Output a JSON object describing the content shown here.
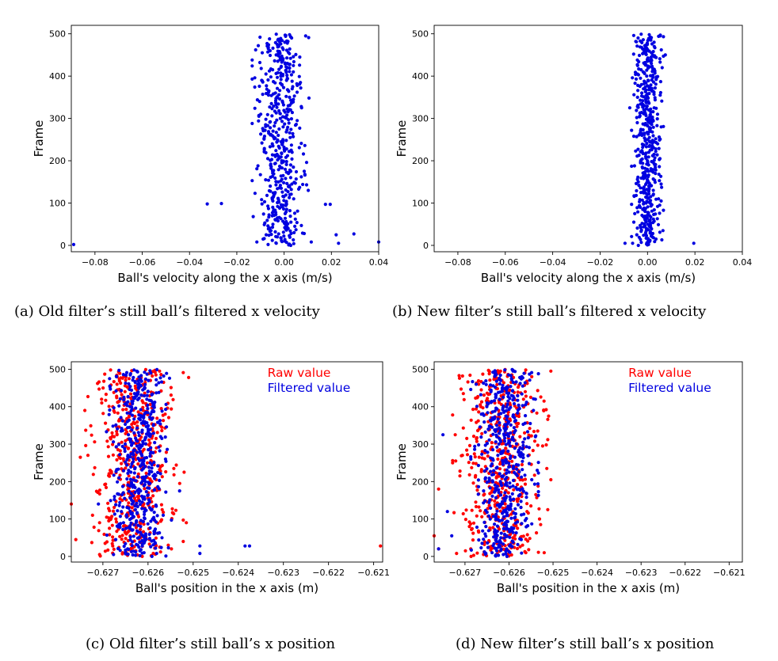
{
  "captions": {
    "a": "(a) Old filter’s still ball’s filtered x velocity",
    "b": "(b) New filter’s still ball’s filtered x velocity",
    "c": "(c) Old filter’s still ball’s x position",
    "d": "(d) New filter’s still ball’s x position"
  },
  "colors": {
    "raw": "#ff0000",
    "filtered": "#0000e0",
    "axis": "#000000"
  },
  "chart_data": [
    {
      "id": "a",
      "type": "scatter",
      "xlabel": "Ball's velocity along the x axis (m/s)",
      "ylabel": "Frame",
      "xlim": [
        -0.09,
        0.04
      ],
      "ylim": [
        -15,
        520
      ],
      "xticks": [
        -0.08,
        -0.06,
        -0.04,
        -0.02,
        0.0,
        0.02,
        0.04
      ],
      "xtick_labels": [
        "−0.08",
        "−0.06",
        "−0.04",
        "−0.02",
        "0.00",
        "0.02",
        "0.04"
      ],
      "yticks": [
        0,
        100,
        200,
        300,
        400,
        500
      ],
      "ytick_labels": [
        "0",
        "100",
        "200",
        "300",
        "400",
        "500"
      ],
      "series": [
        {
          "color": "#0000e0",
          "sample": {
            "count": 500,
            "frames": [
              0,
              499
            ],
            "center": -0.0015,
            "spread": 0.005
          },
          "outliers": [
            [
              -0.089,
              2
            ],
            [
              -0.0325,
              98
            ],
            [
              -0.0265,
              99
            ],
            [
              0.0175,
              97
            ],
            [
              0.0195,
              97
            ],
            [
              0.022,
              25
            ],
            [
              0.023,
              5
            ],
            [
              0.0295,
              27
            ],
            [
              0.04,
              8
            ],
            [
              0.0115,
              8
            ],
            [
              0.0085,
              28
            ],
            [
              -0.0095,
              390
            ],
            [
              0.0095,
              143
            ],
            [
              0.0085,
              175
            ]
          ]
        }
      ]
    },
    {
      "id": "b",
      "type": "scatter",
      "xlabel": "Ball's velocity along the x axis (m/s)",
      "ylabel": "Frame",
      "xlim": [
        -0.09,
        0.04
      ],
      "ylim": [
        -15,
        520
      ],
      "xticks": [
        -0.08,
        -0.06,
        -0.04,
        -0.02,
        0.0,
        0.02,
        0.04
      ],
      "xtick_labels": [
        "−0.08",
        "−0.06",
        "−0.04",
        "−0.02",
        "0.00",
        "0.02",
        "0.04"
      ],
      "yticks": [
        0,
        100,
        200,
        300,
        400,
        500
      ],
      "ytick_labels": [
        "0",
        "100",
        "200",
        "300",
        "400",
        "500"
      ],
      "series": [
        {
          "color": "#0000e0",
          "sample": {
            "count": 500,
            "frames": [
              0,
              499
            ],
            "center": 0.0,
            "spread": 0.0028
          },
          "outliers": [
            [
              -0.0095,
              5
            ],
            [
              0.0195,
              5
            ],
            [
              -0.0075,
              325
            ],
            [
              0.0075,
              450
            ]
          ]
        }
      ]
    },
    {
      "id": "c",
      "type": "scatter",
      "xlabel": "Ball's position in the x axis (m)",
      "ylabel": "Frame",
      "xlim": [
        -0.6277,
        -0.6208
      ],
      "ylim": [
        -15,
        520
      ],
      "xticks": [
        -0.627,
        -0.626,
        -0.625,
        -0.624,
        -0.623,
        -0.622,
        -0.621
      ],
      "xtick_labels": [
        "−0.627",
        "−0.626",
        "−0.625",
        "−0.624",
        "−0.623",
        "−0.622",
        "−0.621"
      ],
      "yticks": [
        0,
        100,
        200,
        300,
        400,
        500
      ],
      "ytick_labels": [
        "0",
        "100",
        "200",
        "300",
        "400",
        "500"
      ],
      "legend": {
        "position": "top-right",
        "entries": [
          "Raw value",
          "Filtered value"
        ]
      },
      "series": [
        {
          "name": "Raw value",
          "color": "#ff0000",
          "sample": {
            "count": 500,
            "frames": [
              0,
              499
            ],
            "center": -0.6263,
            "spread": 0.00045
          },
          "outliers": [
            [
              -0.6277,
              140
            ],
            [
              -0.6276,
              45
            ],
            [
              -0.6275,
              265
            ],
            [
              -0.6274,
              390
            ],
            [
              -0.62085,
              28
            ],
            [
              -0.6252,
              225
            ],
            [
              -0.6251,
              478
            ],
            [
              -0.62515,
              90
            ]
          ]
        },
        {
          "name": "Filtered value",
          "color": "#0000e0",
          "sample": {
            "count": 500,
            "frames": [
              0,
              499
            ],
            "center": -0.6262,
            "spread": 0.0003
          },
          "outliers": [
            [
              -0.62485,
              28
            ],
            [
              -0.62485,
              8
            ],
            [
              -0.62385,
              28
            ],
            [
              -0.62375,
              28
            ],
            [
              -0.6253,
              175
            ],
            [
              -0.6271,
              140
            ]
          ]
        }
      ]
    },
    {
      "id": "d",
      "type": "scatter",
      "xlabel": "Ball's position in the x axis (m)",
      "ylabel": "Frame",
      "xlim": [
        -0.6277,
        -0.6207
      ],
      "ylim": [
        -15,
        520
      ],
      "xticks": [
        -0.627,
        -0.626,
        -0.625,
        -0.624,
        -0.623,
        -0.622,
        -0.621
      ],
      "xtick_labels": [
        "−0.627",
        "−0.626",
        "−0.625",
        "−0.624",
        "−0.623",
        "−0.622",
        "−0.621"
      ],
      "yticks": [
        0,
        100,
        200,
        300,
        400,
        500
      ],
      "ytick_labels": [
        "0",
        "100",
        "200",
        "300",
        "400",
        "500"
      ],
      "legend": {
        "position": "top-right",
        "entries": [
          "Raw value",
          "Filtered value"
        ]
      },
      "series": [
        {
          "name": "Raw value",
          "color": "#ff0000",
          "sample": {
            "count": 500,
            "frames": [
              0,
              499
            ],
            "center": -0.6262,
            "spread": 0.00045
          },
          "outliers": [
            [
              -0.6277,
              55
            ],
            [
              -0.6276,
              20
            ],
            [
              -0.6276,
              180
            ],
            [
              -0.62505,
              205
            ],
            [
              -0.62505,
              495
            ],
            [
              -0.6251,
              375
            ],
            [
              -0.6252,
              10
            ]
          ]
        },
        {
          "name": "Filtered value",
          "color": "#0000e0",
          "sample": {
            "count": 500,
            "frames": [
              0,
              499
            ],
            "center": -0.6261,
            "spread": 0.00032
          },
          "outliers": [
            [
              -0.6275,
              325
            ],
            [
              -0.6274,
              120
            ],
            [
              -0.6273,
              55
            ],
            [
              -0.6276,
              20
            ],
            [
              -0.6254,
              320
            ],
            [
              -0.6254,
              420
            ]
          ]
        }
      ]
    }
  ]
}
